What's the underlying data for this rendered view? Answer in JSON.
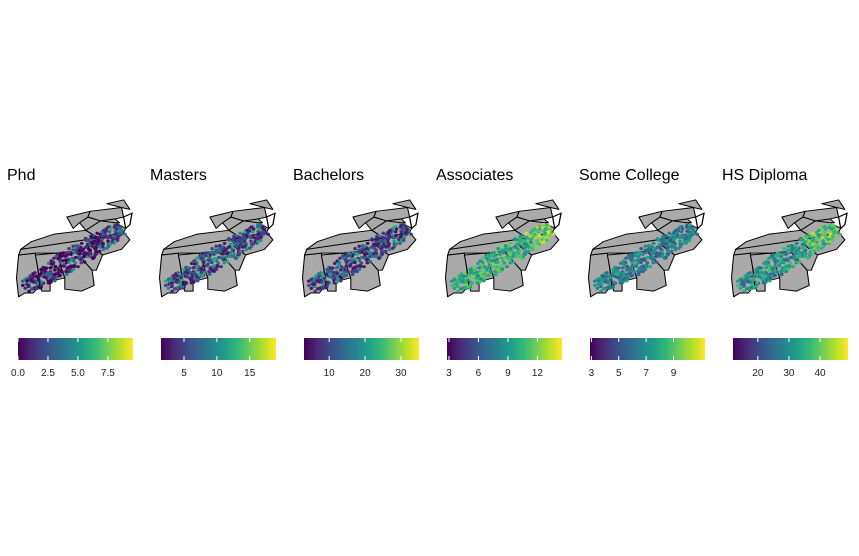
{
  "panels": [
    {
      "title": "Phd",
      "legend": {
        "min": 0.0,
        "max": 9.6,
        "ticks": [
          "0.0",
          "2.5",
          "5.0",
          "7.5"
        ],
        "tick_values": [
          0.0,
          2.5,
          5.0,
          7.5
        ]
      },
      "dist": "low"
    },
    {
      "title": "Masters",
      "legend": {
        "min": 1.5,
        "max": 19.0,
        "ticks": [
          "5",
          "10",
          "15"
        ],
        "tick_values": [
          5,
          10,
          15
        ]
      },
      "dist": "lowmid"
    },
    {
      "title": "Bachelors",
      "legend": {
        "min": 3,
        "max": 35,
        "ticks": [
          "10",
          "20",
          "30"
        ],
        "tick_values": [
          10,
          20,
          30
        ]
      },
      "dist": "lowmid"
    },
    {
      "title": "Associates",
      "legend": {
        "min": 2.8,
        "max": 14.5,
        "ticks": [
          "3",
          "6",
          "9",
          "12"
        ],
        "tick_values": [
          3,
          6,
          9,
          12
        ]
      },
      "dist": "high"
    },
    {
      "title": "Some College",
      "legend": {
        "min": 2.9,
        "max": 11.3,
        "ticks": [
          "3",
          "5",
          "7",
          "9"
        ],
        "tick_values": [
          3,
          5,
          7,
          9
        ]
      },
      "dist": "mid"
    },
    {
      "title": "HS Diploma",
      "legend": {
        "min": 12,
        "max": 49,
        "ticks": [
          "20",
          "30",
          "40"
        ],
        "tick_values": [
          20,
          30,
          40
        ]
      },
      "dist": "highmid"
    }
  ],
  "colors": {
    "state_fill": "#aaaaaa",
    "state_stroke": "#000000",
    "viridis": [
      "#440154",
      "#482878",
      "#3e4989",
      "#31688e",
      "#26828e",
      "#1f9e89",
      "#35b779",
      "#6ece58",
      "#b5de2b",
      "#fde725"
    ]
  }
}
